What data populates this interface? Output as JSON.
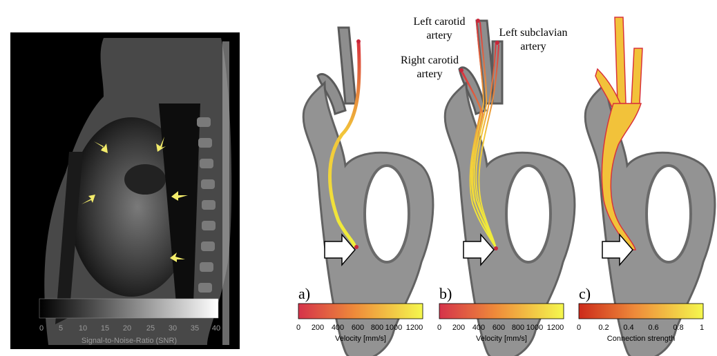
{
  "mri_panel": {
    "colorbar_title": "Signal-to-Noise-Ratio (SNR)",
    "colorbar_ticks": [
      "0",
      "5",
      "10",
      "15",
      "20",
      "25",
      "30",
      "35",
      "40"
    ],
    "colorbar_colors": [
      "#000000",
      "#ffffff"
    ],
    "arrow_color": "#f3ec6a"
  },
  "panels": [
    {
      "letter": "a)",
      "colorbar_label": "Velocity [mm/s]",
      "colorbar_ticks": [
        "0",
        "200",
        "400",
        "600",
        "800",
        "1000",
        "1200"
      ],
      "colorbar_colors": [
        "#d5334a",
        "#ee8a3a",
        "#f5f84e"
      ]
    },
    {
      "letter": "b)",
      "colorbar_label": "Velocity [mm/s]",
      "colorbar_ticks": [
        "0",
        "200",
        "400",
        "600",
        "800",
        "1000",
        "1200"
      ],
      "colorbar_colors": [
        "#d5334a",
        "#ee8a3a",
        "#f5f84e"
      ]
    },
    {
      "letter": "c)",
      "colorbar_label": "Connection strength",
      "colorbar_ticks": [
        "0",
        "0.2",
        "0.4",
        "0.6",
        "0.8",
        "1"
      ],
      "colorbar_colors": [
        "#cc2a1a",
        "#ee8a3a",
        "#f5f84e"
      ]
    }
  ],
  "annotations": {
    "left_carotid": [
      "Left carotid",
      "artery"
    ],
    "left_subclavian": [
      "Left subclavian",
      "artery"
    ],
    "right_carotid": [
      "Right carotid",
      "artery"
    ]
  }
}
